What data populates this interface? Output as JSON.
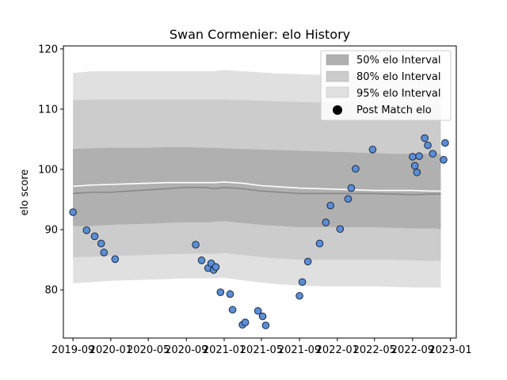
{
  "chart_data": {
    "type": "line",
    "title": "Swan Cormenier: elo History",
    "xlabel": "",
    "ylabel": "elo score",
    "xlim": [
      "2019-08-01",
      "2023-01-20"
    ],
    "ylim": [
      72,
      120.5
    ],
    "x_ticks": [
      "2019-09",
      "2020-01",
      "2020-05",
      "2020-09",
      "2021-01",
      "2021-05",
      "2021-09",
      "2022-01",
      "2022-05",
      "2022-09",
      "2023-01"
    ],
    "y_ticks": [
      80,
      90,
      100,
      110,
      120
    ],
    "grid": false,
    "legend_position": "upper-right",
    "band_dates": [
      "2019-09-01",
      "2019-11-01",
      "2020-01-01",
      "2020-03-01",
      "2020-05-01",
      "2020-07-01",
      "2020-09-01",
      "2020-11-01",
      "2020-12-01",
      "2021-01-01",
      "2021-03-01",
      "2021-05-01",
      "2021-07-01",
      "2021-09-01",
      "2021-11-01",
      "2022-01-01",
      "2022-03-01",
      "2022-05-01",
      "2022-07-01",
      "2022-09-01",
      "2022-11-01",
      "2022-12-01"
    ],
    "median_line": [
      96.0,
      96.2,
      96.2,
      96.4,
      96.6,
      96.8,
      97.0,
      97.0,
      96.8,
      97.0,
      96.8,
      96.4,
      96.2,
      96.0,
      96.0,
      96.0,
      96.0,
      96.0,
      95.9,
      95.8,
      95.9,
      95.9
    ],
    "mean_line": [
      97.2,
      97.4,
      97.5,
      97.6,
      97.7,
      97.8,
      97.8,
      97.8,
      97.8,
      97.9,
      97.7,
      97.3,
      97.1,
      96.9,
      96.8,
      96.7,
      96.6,
      96.5,
      96.5,
      96.5,
      96.4,
      96.4
    ],
    "series": [
      {
        "name": "50% elo Interval",
        "type": "band",
        "color": "#b0b0b0",
        "lower": [
          90.6,
          90.6,
          90.8,
          90.9,
          91.0,
          91.1,
          91.2,
          91.2,
          91.3,
          91.4,
          91.1,
          90.8,
          90.6,
          90.4,
          90.4,
          90.4,
          90.4,
          90.4,
          90.3,
          90.2,
          90.2,
          90.1
        ],
        "upper": [
          103.4,
          103.5,
          103.6,
          103.6,
          103.6,
          103.7,
          103.7,
          103.6,
          103.6,
          103.5,
          103.4,
          103.3,
          103.2,
          103.1,
          103.0,
          102.9,
          102.8,
          102.7,
          102.6,
          102.6,
          102.6,
          102.6
        ]
      },
      {
        "name": "80% elo Interval",
        "type": "band",
        "color": "#cccccc",
        "lower": [
          85.4,
          85.5,
          85.6,
          85.7,
          85.8,
          85.9,
          86.0,
          86.0,
          86.0,
          86.1,
          85.8,
          85.4,
          85.2,
          85.0,
          85.0,
          85.0,
          85.0,
          85.0,
          85.0,
          84.9,
          84.8,
          84.8
        ],
        "upper": [
          111.5,
          111.6,
          111.6,
          111.6,
          111.6,
          111.6,
          111.6,
          111.6,
          111.6,
          111.6,
          111.5,
          111.4,
          111.3,
          111.2,
          111.1,
          111.0,
          111.0,
          110.9,
          110.9,
          110.9,
          110.9,
          110.9
        ]
      },
      {
        "name": "95% elo Interval",
        "type": "band",
        "color": "#e0e0e0",
        "lower": [
          81.1,
          81.3,
          81.5,
          81.6,
          81.7,
          81.8,
          81.9,
          81.9,
          81.9,
          82.0,
          81.6,
          81.2,
          80.9,
          80.7,
          80.6,
          80.6,
          80.6,
          80.6,
          80.5,
          80.4,
          80.4,
          80.4
        ],
        "upper": [
          116.0,
          116.3,
          116.3,
          116.3,
          116.3,
          116.3,
          116.3,
          116.3,
          116.3,
          116.5,
          116.3,
          116.1,
          115.9,
          115.8,
          115.7,
          115.6,
          115.6,
          115.5,
          115.5,
          115.5,
          115.5,
          115.5
        ]
      },
      {
        "name": "Post Match elo",
        "type": "scatter",
        "color": "#5b8ed6",
        "points": [
          {
            "x": "2019-09-01",
            "y": 92.9
          },
          {
            "x": "2019-10-15",
            "y": 89.9
          },
          {
            "x": "2019-11-10",
            "y": 88.9
          },
          {
            "x": "2019-12-01",
            "y": 87.7
          },
          {
            "x": "2019-12-10",
            "y": 86.2
          },
          {
            "x": "2020-01-15",
            "y": 85.1
          },
          {
            "x": "2020-10-01",
            "y": 87.5
          },
          {
            "x": "2020-10-20",
            "y": 84.9
          },
          {
            "x": "2020-11-10",
            "y": 83.6
          },
          {
            "x": "2020-11-20",
            "y": 84.4
          },
          {
            "x": "2020-11-28",
            "y": 83.3
          },
          {
            "x": "2020-12-05",
            "y": 83.8
          },
          {
            "x": "2020-12-20",
            "y": 79.6
          },
          {
            "x": "2021-01-20",
            "y": 79.3
          },
          {
            "x": "2021-01-28",
            "y": 76.7
          },
          {
            "x": "2021-03-01",
            "y": 74.2
          },
          {
            "x": "2021-03-10",
            "y": 74.6
          },
          {
            "x": "2021-04-20",
            "y": 76.5
          },
          {
            "x": "2021-05-05",
            "y": 75.6
          },
          {
            "x": "2021-05-15",
            "y": 74.1
          },
          {
            "x": "2021-09-01",
            "y": 79.0
          },
          {
            "x": "2021-09-10",
            "y": 81.3
          },
          {
            "x": "2021-09-28",
            "y": 84.7
          },
          {
            "x": "2021-11-05",
            "y": 87.7
          },
          {
            "x": "2021-11-25",
            "y": 91.2
          },
          {
            "x": "2021-12-10",
            "y": 94.0
          },
          {
            "x": "2022-01-10",
            "y": 90.1
          },
          {
            "x": "2022-02-05",
            "y": 95.1
          },
          {
            "x": "2022-02-15",
            "y": 96.9
          },
          {
            "x": "2022-03-01",
            "y": 100.1
          },
          {
            "x": "2022-04-25",
            "y": 103.3
          },
          {
            "x": "2022-09-01",
            "y": 102.1
          },
          {
            "x": "2022-09-08",
            "y": 100.6
          },
          {
            "x": "2022-09-15",
            "y": 99.5
          },
          {
            "x": "2022-09-22",
            "y": 102.2
          },
          {
            "x": "2022-10-10",
            "y": 105.2
          },
          {
            "x": "2022-10-20",
            "y": 104.0
          },
          {
            "x": "2022-11-05",
            "y": 102.6
          },
          {
            "x": "2022-12-10",
            "y": 101.6
          },
          {
            "x": "2022-12-15",
            "y": 104.4
          }
        ]
      }
    ]
  }
}
